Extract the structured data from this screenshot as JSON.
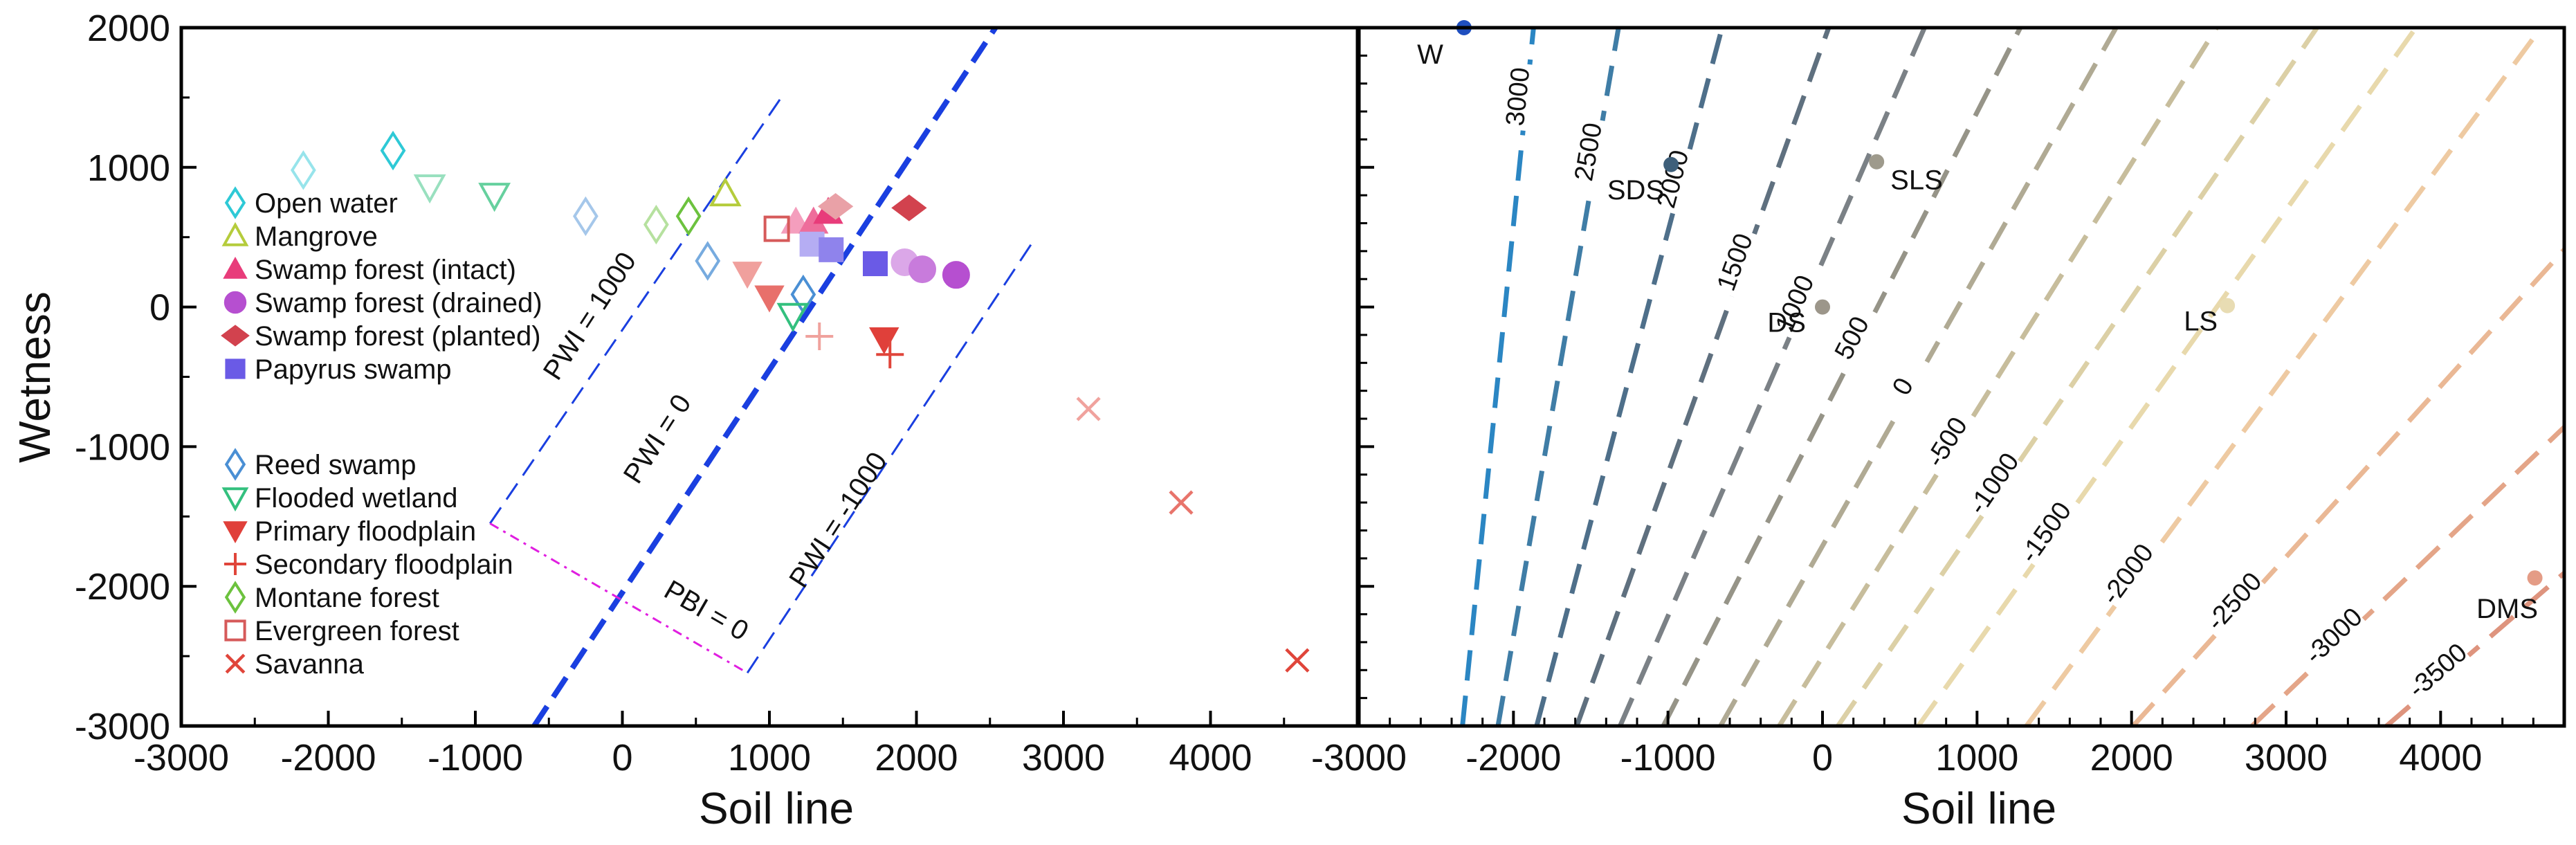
{
  "chart_data": [
    {
      "type": "scatter",
      "xlabel": "Soil line",
      "ylabel": "Wetness",
      "xlim": [
        -3000,
        5000
      ],
      "ylim": [
        -3000,
        2000
      ],
      "xticks": [
        "-3000",
        "-2000",
        "-1000",
        "0",
        "1000",
        "2000",
        "3000",
        "4000"
      ],
      "yticks": [
        "2000",
        "1000",
        "0",
        "-1000",
        "-2000",
        "-3000"
      ],
      "reference_lines": [
        {
          "name": "pwi-1000",
          "label": "PWI = 1000",
          "color": "#1a3fe0",
          "style": "thin-dashed",
          "from": [
            -900,
            -1550
          ],
          "to": [
            1100,
            1530
          ]
        },
        {
          "name": "pwi-0",
          "label": "PWI = 0",
          "color": "#1a3fe0",
          "style": "thick-dashed",
          "from": [
            -600,
            -3000
          ],
          "to": [
            2600,
            2100
          ]
        },
        {
          "name": "pwi-neg1000",
          "label": "PWI = -1000",
          "color": "#1a3fe0",
          "style": "thin-dashed",
          "from": [
            850,
            -2620
          ],
          "to": [
            2800,
            480
          ]
        },
        {
          "name": "pbi-0",
          "label": "PBI = 0",
          "color": "#e01ee0",
          "style": "dash-dot",
          "from": [
            -900,
            -1550
          ],
          "to": [
            850,
            -2620
          ]
        }
      ],
      "series": [
        {
          "name": "Open water",
          "marker": "diamond-open",
          "color": "#2ec9d6",
          "points": [
            [
              -2170,
              980
            ],
            [
              -1560,
              1120
            ]
          ]
        },
        {
          "name": "Mangrove",
          "marker": "triangle-up-open",
          "color": "#b5cc3c",
          "points": [
            [
              700,
              810
            ]
          ]
        },
        {
          "name": "Swamp forest (intact)",
          "marker": "triangle-up-filled",
          "color": "#e83c7a",
          "points": [
            [
              1180,
              610
            ],
            [
              1300,
              610
            ],
            [
              1400,
              680
            ]
          ]
        },
        {
          "name": "Swamp forest (drained)",
          "marker": "circle-filled",
          "color": "#b64fd0",
          "points": [
            [
              1920,
              320
            ],
            [
              2040,
              270
            ],
            [
              2270,
              230
            ]
          ]
        },
        {
          "name": "Swamp forest (planted)",
          "marker": "diamond-filled",
          "color": "#d2424e",
          "points": [
            [
              1450,
              720
            ],
            [
              1950,
              710
            ]
          ]
        },
        {
          "name": "Papyrus swamp",
          "marker": "square-filled",
          "color": "#6a5ae6",
          "points": [
            [
              1290,
              450
            ],
            [
              1420,
              410
            ],
            [
              1720,
              310
            ]
          ]
        },
        {
          "name": "Reed swamp",
          "marker": "diamond-open",
          "color": "#4a8fd4",
          "points": [
            [
              -250,
              650
            ],
            [
              580,
              330
            ],
            [
              1230,
              90
            ]
          ]
        },
        {
          "name": "Flooded wetland",
          "marker": "triangle-down-open",
          "color": "#33c07e",
          "points": [
            [
              -1310,
              860
            ],
            [
              -870,
              800
            ],
            [
              1160,
              -60
            ]
          ]
        },
        {
          "name": "Primary floodplain",
          "marker": "triangle-down-filled",
          "color": "#e0403a",
          "points": [
            [
              850,
              240
            ],
            [
              1000,
              70
            ],
            [
              1780,
              -230
            ]
          ]
        },
        {
          "name": "Secondary floodplain",
          "marker": "plus",
          "color": "#e0453a",
          "points": [
            [
              1340,
              -210
            ],
            [
              1820,
              -340
            ]
          ]
        },
        {
          "name": "Montane forest",
          "marker": "diamond-open",
          "color": "#6cc23e",
          "points": [
            [
              230,
              590
            ],
            [
              450,
              650
            ]
          ]
        },
        {
          "name": "Evergreen forest",
          "marker": "square-open",
          "color": "#d65a5a",
          "points": [
            [
              1050,
              560
            ]
          ]
        },
        {
          "name": "Savanna",
          "marker": "x",
          "color": "#e0453a",
          "points": [
            [
              3170,
              -730
            ],
            [
              3800,
              -1400
            ],
            [
              4590,
              -2530
            ]
          ]
        }
      ]
    },
    {
      "type": "line",
      "xlabel": "Soil line",
      "ylabel": "",
      "xlim": [
        -3000,
        4800
      ],
      "ylim": [
        -3000,
        2000
      ],
      "xticks": [
        "-3000",
        "-2000",
        "-1000",
        "0",
        "1000",
        "2000",
        "3000",
        "4000"
      ],
      "contours": [
        {
          "label": "3000",
          "color": "#2b86c3",
          "bottom_x": -2330,
          "top_x": -1870
        },
        {
          "label": "2500",
          "color": "#3f7da6",
          "bottom_x": -2100,
          "top_x": -1320
        },
        {
          "label": "2000",
          "color": "#4e6f8a",
          "bottom_x": -1850,
          "top_x": -650
        },
        {
          "label": "1500",
          "color": "#5f707f",
          "bottom_x": -1590,
          "top_x": 40
        },
        {
          "label": "1000",
          "color": "#7b8186",
          "bottom_x": -1310,
          "top_x": 660
        },
        {
          "label": "500",
          "color": "#969488",
          "bottom_x": -1030,
          "top_x": 1280
        },
        {
          "label": "0",
          "color": "#b0aa94",
          "bottom_x": -660,
          "top_x": 1900
        },
        {
          "label": "-500",
          "color": "#c7bd9c",
          "bottom_x": -280,
          "top_x": 2550
        },
        {
          "label": "-1000",
          "color": "#dcd0a6",
          "bottom_x": 100,
          "top_x": 3200
        },
        {
          "label": "-1500",
          "color": "#e8d9ac",
          "bottom_x": 620,
          "top_x": 3840
        },
        {
          "label": "-2000",
          "color": "#eecaa2",
          "bottom_x": 1320,
          "top_x": 4650
        },
        {
          "label": "-2500",
          "color": "#eab895",
          "bottom_x": 2010,
          "top_x": 6100
        },
        {
          "label": "-3000",
          "color": "#e4a588",
          "bottom_x": 2780,
          "top_x": 7500
        },
        {
          "label": "-3500",
          "color": "#de947e",
          "bottom_x": 3650,
          "top_x": 8900
        }
      ],
      "points": [
        {
          "label": "W",
          "x": -2320,
          "y": 2000,
          "color": "#1f4fbf"
        },
        {
          "label": "SDS",
          "x": -980,
          "y": 1020,
          "color": "#3e5f7a"
        },
        {
          "label": "SLS",
          "x": 350,
          "y": 1040,
          "color": "#9e9a8c"
        },
        {
          "label": "DS",
          "x": 0,
          "y": 0,
          "color": "#9c968a"
        },
        {
          "label": "LS",
          "x": 2620,
          "y": 10,
          "color": "#e8dcb3"
        },
        {
          "label": "DMS",
          "x": 4610,
          "y": -1940,
          "color": "#e49c86"
        }
      ]
    }
  ]
}
